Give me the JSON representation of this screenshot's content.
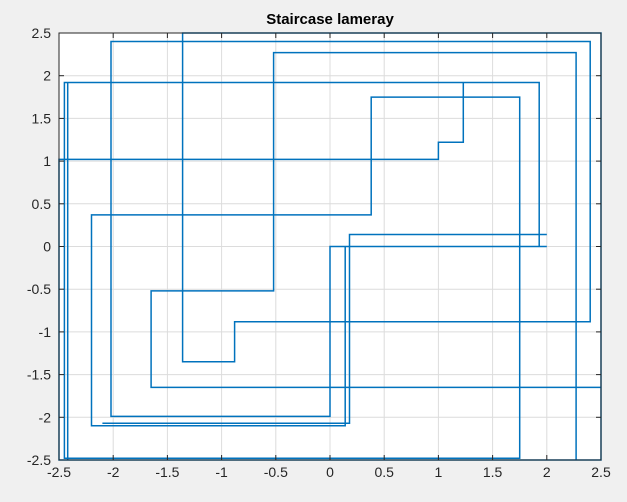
{
  "chart_data": {
    "type": "line",
    "title": "Staircase lameray",
    "xlabel": "",
    "ylabel": "",
    "xlim": [
      -2.5,
      2.5
    ],
    "ylim": [
      -2.5,
      2.5
    ],
    "grid": true,
    "background": "#f0f0f0",
    "axes_background": "#ffffff",
    "grid_color": "#dcdcdc",
    "line_color": "#0072bd",
    "xticks": [
      -2.5,
      -2,
      -1.5,
      -1,
      -0.5,
      0,
      0.5,
      1,
      1.5,
      2,
      2.5
    ],
    "yticks": [
      -2.5,
      -2,
      -1.5,
      -1,
      -0.5,
      0,
      0.5,
      1,
      1.5,
      2,
      2.5
    ],
    "xtick_labels": [
      "-2.5",
      "-2",
      "-1.5",
      "-1",
      "-0.5",
      "0",
      "0.5",
      "1",
      "1.5",
      "2",
      "2.5"
    ],
    "ytick_labels": [
      "-2.5",
      "-2",
      "-1.5",
      "-1",
      "-0.5",
      "0",
      "0.5",
      "1",
      "1.5",
      "2",
      "2.5"
    ],
    "series": [
      {
        "x": [
          2.0,
          0.14,
          0.14,
          -2.2,
          -2.2,
          0.38,
          0.38,
          1.75,
          1.75,
          -2.45,
          -2.45,
          1.23,
          1.23,
          1.0,
          1.0,
          -2.5,
          -2.5,
          2.5,
          2.5,
          -1.36,
          -1.36,
          -0.88,
          -0.88,
          2.4,
          2.4,
          -2.02,
          -2.02,
          0.0,
          0.0,
          1.93,
          1.93,
          -2.42,
          -2.42,
          2.27,
          2.27,
          -0.52,
          -0.52,
          -1.65,
          -1.65,
          2.5
        ],
        "y": [
          0.0,
          0.0,
          -2.1,
          -2.1,
          0.37,
          0.37,
          1.75,
          1.75,
          -2.48,
          -2.48,
          1.92,
          1.92,
          1.22,
          1.22,
          1.02,
          1.02,
          -2.5,
          -2.5,
          2.5,
          2.5,
          -1.35,
          -1.35,
          -0.88,
          -0.88,
          2.4,
          2.4,
          -1.99,
          -1.99,
          0.0,
          0.0,
          1.92,
          1.92,
          -2.5,
          -2.5,
          2.27,
          2.27,
          -0.52,
          -0.52,
          -1.65,
          -1.65
        ]
      },
      {
        "x": [
          -2.1,
          0.18,
          0.18,
          2.0
        ],
        "y": [
          -2.07,
          -2.07,
          0.14,
          0.14
        ]
      }
    ]
  }
}
